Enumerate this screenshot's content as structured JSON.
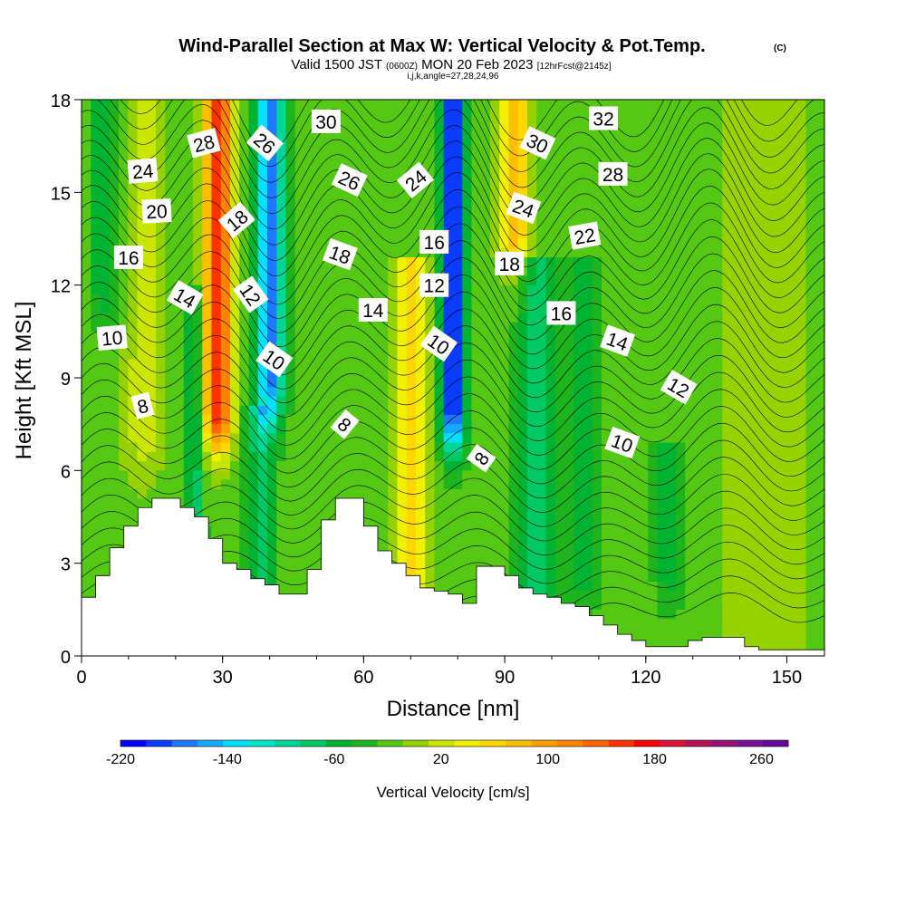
{
  "header": {
    "title": "Wind-Parallel Section at Max W: Vertical Velocity & Pot.Temp.",
    "copyright": "(C)",
    "valid_prefix": "Valid 1500 JST",
    "valid_utc": "(0600Z)",
    "valid_date": "MON 20 Feb 2023",
    "forecast": "[12hrFcst@2145z]",
    "params": "i,j,k,angle=27,28,24,96"
  },
  "colors": {
    "colorbar": [
      "#0000ff",
      "#0a3cff",
      "#1e78ff",
      "#14aaff",
      "#00e0ff",
      "#00e8c8",
      "#00d696",
      "#00c864",
      "#00b432",
      "#1eb41e",
      "#55c814",
      "#96d200",
      "#c8e600",
      "#f0f000",
      "#ffd700",
      "#ffbe00",
      "#ffa000",
      "#ff8200",
      "#ff6400",
      "#ff3200",
      "#ff0000",
      "#dc143c",
      "#b4145a",
      "#961478",
      "#781496",
      "#640a96"
    ],
    "terrain": "#ffffff",
    "contour": "#000000"
  },
  "chart_data": {
    "type": "heatmap",
    "xlabel": "Distance [nm]",
    "ylabel": "Height [Kft MSL]",
    "xlim": [
      0,
      158
    ],
    "ylim": [
      0,
      18
    ],
    "x_ticks": [
      0,
      30,
      60,
      90,
      120,
      150
    ],
    "y_ticks": [
      0,
      3,
      6,
      9,
      12,
      15,
      18
    ],
    "colorbar": {
      "label": "Vertical Velocity [cm/s]",
      "min": -220,
      "max": 280,
      "step": 20,
      "tick_values": [
        -220,
        -140,
        -60,
        20,
        100,
        180,
        260
      ]
    },
    "contour_labels": [
      {
        "text": "28",
        "x": 26,
        "y": 16.6,
        "angle": -15
      },
      {
        "text": "24",
        "x": 13,
        "y": 15.7,
        "angle": -5
      },
      {
        "text": "20",
        "x": 16,
        "y": 14.4,
        "angle": -3
      },
      {
        "text": "16",
        "x": 10,
        "y": 12.9,
        "angle": 0
      },
      {
        "text": "14",
        "x": 22,
        "y": 11.6,
        "angle": 30
      },
      {
        "text": "10",
        "x": 6.5,
        "y": 10.3,
        "angle": -5
      },
      {
        "text": "8",
        "x": 13,
        "y": 8.1,
        "angle": -15
      },
      {
        "text": "26",
        "x": 39,
        "y": 16.6,
        "angle": 40
      },
      {
        "text": "18",
        "x": 33,
        "y": 14.1,
        "angle": -40
      },
      {
        "text": "12",
        "x": 36,
        "y": 11.7,
        "angle": 55
      },
      {
        "text": "10",
        "x": 41,
        "y": 9.6,
        "angle": 35
      },
      {
        "text": "30",
        "x": 52,
        "y": 17.3,
        "angle": 0
      },
      {
        "text": "26",
        "x": 57,
        "y": 15.4,
        "angle": 25
      },
      {
        "text": "18",
        "x": 55,
        "y": 13.0,
        "angle": 20
      },
      {
        "text": "14",
        "x": 62,
        "y": 11.2,
        "angle": 0
      },
      {
        "text": "8",
        "x": 56,
        "y": 7.5,
        "angle": 40
      },
      {
        "text": "24",
        "x": 71,
        "y": 15.4,
        "angle": -40
      },
      {
        "text": "16",
        "x": 75,
        "y": 13.4,
        "angle": 0
      },
      {
        "text": "12",
        "x": 75,
        "y": 12.0,
        "angle": 0
      },
      {
        "text": "10",
        "x": 76,
        "y": 10.1,
        "angle": 35
      },
      {
        "text": "8",
        "x": 85,
        "y": 6.4,
        "angle": -55
      },
      {
        "text": "30",
        "x": 97,
        "y": 16.6,
        "angle": 25
      },
      {
        "text": "24",
        "x": 94,
        "y": 14.5,
        "angle": 20
      },
      {
        "text": "18",
        "x": 91,
        "y": 12.7,
        "angle": 0
      },
      {
        "text": "16",
        "x": 102,
        "y": 11.1,
        "angle": 0
      },
      {
        "text": "32",
        "x": 111,
        "y": 17.4,
        "angle": 0
      },
      {
        "text": "28",
        "x": 113,
        "y": 15.6,
        "angle": 0
      },
      {
        "text": "22",
        "x": 107,
        "y": 13.6,
        "angle": -10
      },
      {
        "text": "14",
        "x": 114,
        "y": 10.2,
        "angle": 20
      },
      {
        "text": "12",
        "x": 127,
        "y": 8.7,
        "angle": 30
      },
      {
        "text": "10",
        "x": 115,
        "y": 6.9,
        "angle": 20
      }
    ]
  }
}
